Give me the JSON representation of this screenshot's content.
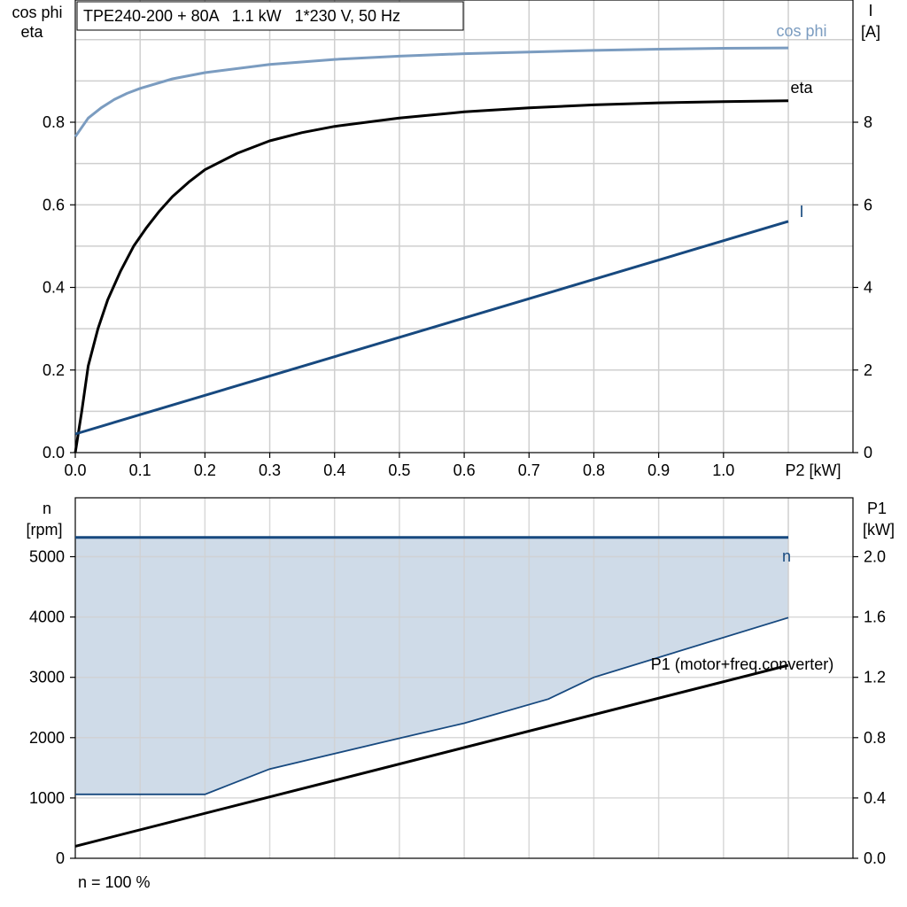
{
  "title_box": "TPE240-200 + 80A   1.1 kW   1*230 V, 50 Hz",
  "footer_note": "n = 100 %",
  "colors": {
    "cosphi": "#7b9cc0",
    "eta": "#000000",
    "current": "#17497f",
    "speed": "#17497f",
    "speed_fill": "#cfdbe8",
    "p1": "#000000",
    "grid": "#cfcfcf"
  },
  "chart_data": [
    {
      "type": "line",
      "name_key": "top",
      "x_axis_label": "P2 [kW]",
      "x_ticks": [
        "0.0",
        "0.1",
        "0.2",
        "0.3",
        "0.4",
        "0.5",
        "0.6",
        "0.7",
        "0.8",
        "0.9",
        "1.0"
      ],
      "x_tick_values": [
        0,
        0.1,
        0.2,
        0.3,
        0.4,
        0.5,
        0.6,
        0.7,
        0.8,
        0.9,
        1.0
      ],
      "xlim": [
        0,
        1.1
      ],
      "left_axis_label": [
        "cos phi",
        "eta"
      ],
      "left_ticks": [
        "0.0",
        "0.2",
        "0.4",
        "0.6",
        "0.8"
      ],
      "left_tick_values": [
        0,
        0.2,
        0.4,
        0.6,
        0.8
      ],
      "left_ylim": [
        0,
        1.0
      ],
      "right_axis_label": [
        "I",
        "[A]"
      ],
      "right_ticks": [
        "0",
        "2",
        "4",
        "6",
        "8"
      ],
      "right_tick_values": [
        0,
        2,
        4,
        6,
        8
      ],
      "right_ylim": [
        0,
        10.0
      ],
      "grid": true,
      "series": [
        {
          "name": "cos phi",
          "axis": "left",
          "x": [
            0,
            0.02,
            0.04,
            0.06,
            0.08,
            0.1,
            0.15,
            0.2,
            0.3,
            0.4,
            0.5,
            0.6,
            0.7,
            0.8,
            0.9,
            1.0,
            1.1
          ],
          "y": [
            0.765,
            0.81,
            0.835,
            0.855,
            0.87,
            0.882,
            0.905,
            0.92,
            0.94,
            0.952,
            0.96,
            0.966,
            0.97,
            0.974,
            0.977,
            0.979,
            0.98
          ]
        },
        {
          "name": "eta",
          "axis": "left",
          "x": [
            0,
            0.01,
            0.02,
            0.035,
            0.05,
            0.07,
            0.09,
            0.11,
            0.13,
            0.15,
            0.175,
            0.2,
            0.25,
            0.3,
            0.35,
            0.4,
            0.5,
            0.6,
            0.7,
            0.8,
            0.9,
            1.0,
            1.1
          ],
          "y": [
            0,
            0.1,
            0.21,
            0.3,
            0.37,
            0.44,
            0.5,
            0.545,
            0.585,
            0.62,
            0.655,
            0.685,
            0.725,
            0.755,
            0.775,
            0.79,
            0.81,
            0.825,
            0.835,
            0.842,
            0.847,
            0.85,
            0.852
          ]
        },
        {
          "name": "I",
          "axis": "right",
          "x": [
            0,
            1.1
          ],
          "y": [
            0.45,
            5.6
          ]
        }
      ]
    },
    {
      "type": "area",
      "name_key": "bottom",
      "xlim": [
        0,
        1.1
      ],
      "x_tick_values": [
        0,
        0.1,
        0.2,
        0.3,
        0.4,
        0.5,
        0.6,
        0.7,
        0.8,
        0.9,
        1.0
      ],
      "left_axis_label": [
        "n",
        "[rpm]"
      ],
      "left_ticks": [
        "0",
        "1000",
        "2000",
        "3000",
        "4000",
        "5000"
      ],
      "left_tick_values": [
        0,
        1000,
        2000,
        3000,
        4000,
        5000
      ],
      "left_ylim": [
        0,
        5500
      ],
      "right_axis_label": [
        "P1",
        "[kW]"
      ],
      "right_ticks": [
        "0.0",
        "0.4",
        "0.8",
        "1.2",
        "1.6",
        "2.0"
      ],
      "right_tick_values": [
        0,
        0.4,
        0.8,
        1.2,
        1.6,
        2.0
      ],
      "right_ylim": [
        0,
        2.2
      ],
      "grid": true,
      "series": [
        {
          "name": "n",
          "axis": "left",
          "x": [
            0,
            1.1
          ],
          "y": [
            5320,
            5320
          ]
        },
        {
          "name": "n_min",
          "axis": "left",
          "x": [
            0,
            0.2,
            0.3,
            0.5,
            0.6,
            0.73,
            0.8,
            1.1
          ],
          "y": [
            1060,
            1060,
            1480,
            1990,
            2240,
            2640,
            3000,
            3990
          ]
        },
        {
          "name": "P1 (motor+freq.converter)",
          "axis": "right",
          "x": [
            0,
            1.1
          ],
          "y": [
            0.08,
            1.28
          ]
        }
      ]
    }
  ]
}
